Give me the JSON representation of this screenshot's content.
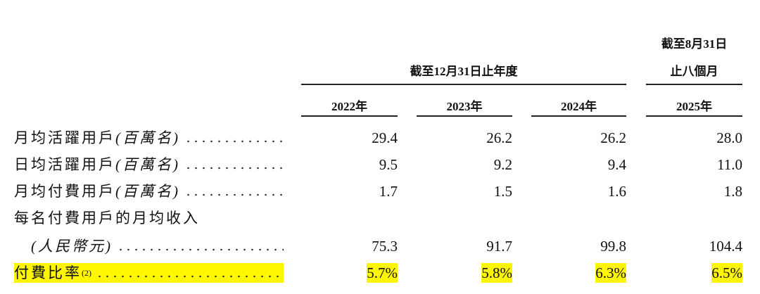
{
  "header": {
    "group_label": "截至12月31日止年度",
    "period_label_line1": "截至8月31日",
    "period_label_line2": "止八個月",
    "years": [
      "2022年",
      "2023年",
      "2024年",
      "2025年"
    ]
  },
  "table": {
    "rows": [
      {
        "label": "月均活躍用戶",
        "unit": "(百萬名)",
        "values": [
          "29.4",
          "26.2",
          "26.2",
          "28.0"
        ]
      },
      {
        "label": "日均活躍用戶",
        "unit": "(百萬名)",
        "values": [
          "9.5",
          "9.2",
          "9.4",
          "11.0"
        ]
      },
      {
        "label": "月均付費用戶",
        "unit": "(百萬名)",
        "values": [
          "1.7",
          "1.5",
          "1.6",
          "1.8"
        ]
      },
      {
        "label": "每名付費用戶的月均收入",
        "unit": "(人民幣元)",
        "values": [
          "75.3",
          "91.7",
          "99.8",
          "104.4"
        ]
      },
      {
        "label": "付費比率",
        "footnote": "(2)",
        "values": [
          "5.7%",
          "5.8%",
          "6.3%",
          "6.5%"
        ],
        "highlighted": true
      }
    ]
  }
}
